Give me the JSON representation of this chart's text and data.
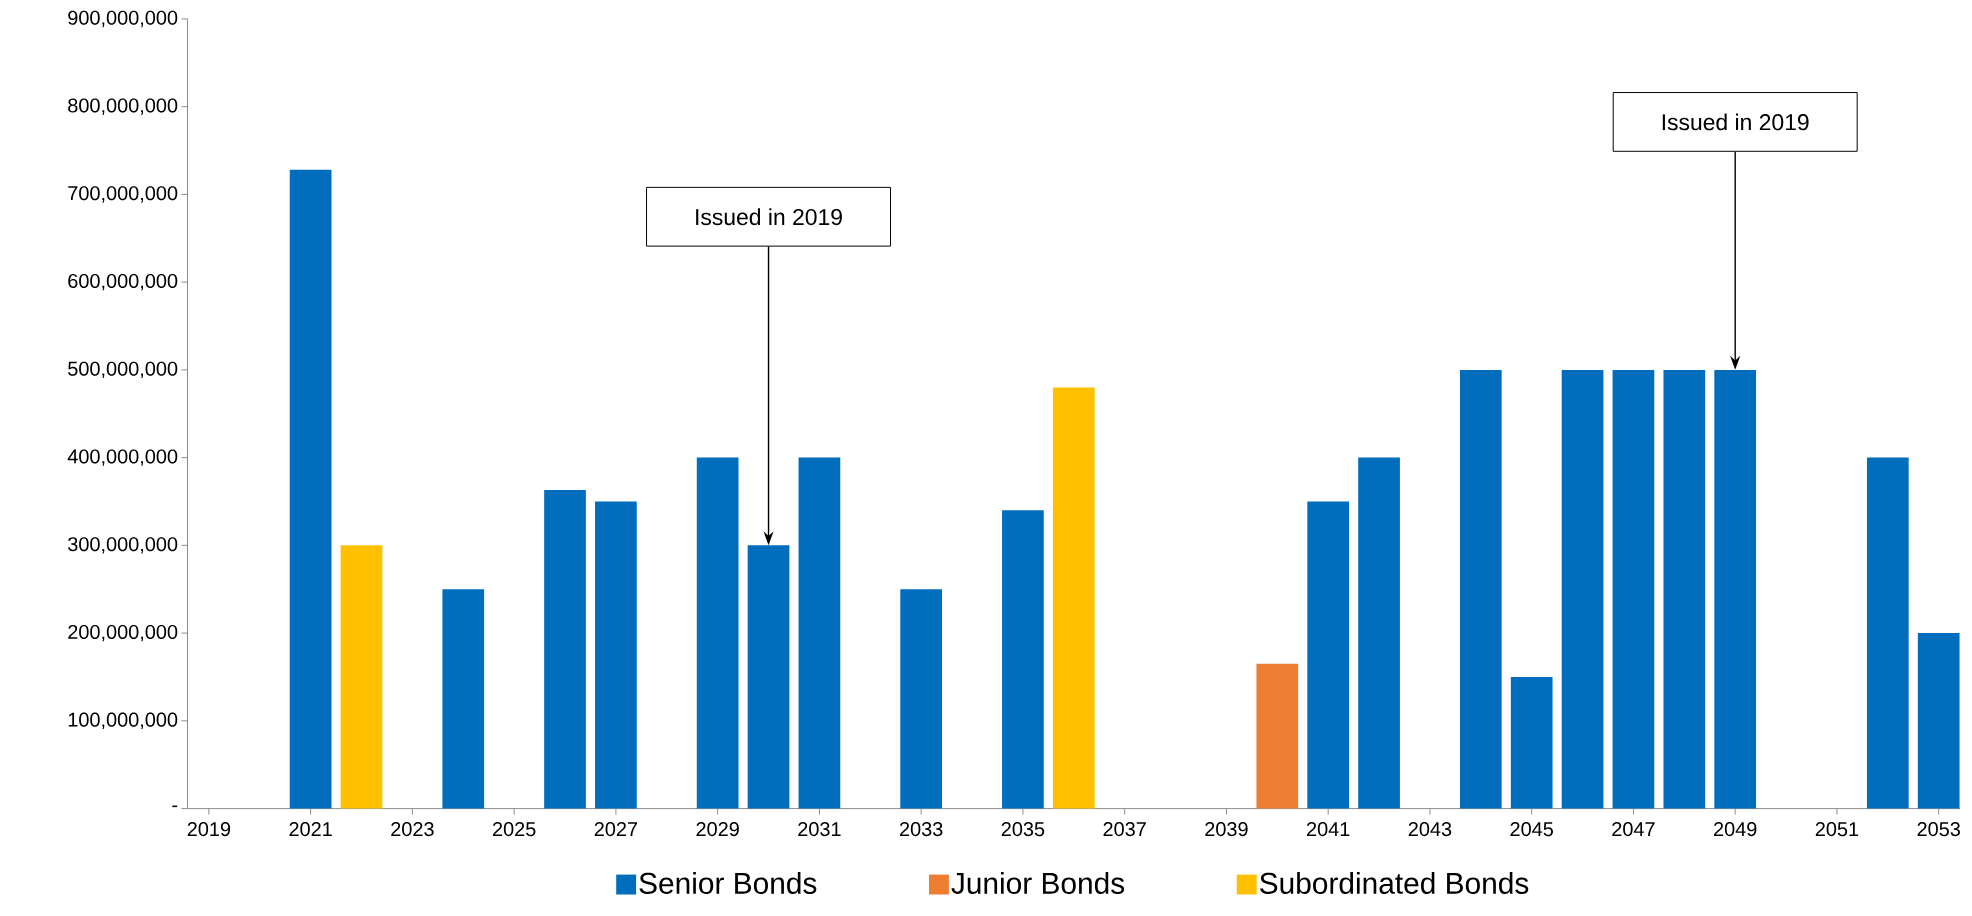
{
  "chart_data": {
    "type": "bar",
    "series": [
      {
        "name": "Senior Bonds",
        "color": "#006ebd",
        "x": [
          2021,
          2024,
          2026,
          2027,
          2029,
          2030,
          2031,
          2033,
          2035,
          2041,
          2042,
          2044,
          2045,
          2046,
          2047,
          2048,
          2049,
          2052,
          2053
        ],
        "values": [
          728000000,
          250000000,
          363000000,
          350000000,
          400000000,
          300000000,
          400000000,
          250000000,
          340000000,
          350000000,
          400000000,
          500000000,
          150000000,
          500000000,
          500000000,
          500000000,
          500000000,
          400000000,
          200000000
        ]
      },
      {
        "name": "Junior Bonds",
        "color": "#ed7d31",
        "x": [
          2040
        ],
        "values": [
          165000000
        ]
      },
      {
        "name": "Subordinated Bonds",
        "color": "#ffc000",
        "x": [
          2022,
          2036
        ],
        "values": [
          300000000,
          480000000
        ]
      }
    ],
    "xlim": [
      2018.58,
      2053.42
    ],
    "xticks": [
      2019,
      2021,
      2023,
      2025,
      2027,
      2029,
      2031,
      2033,
      2035,
      2037,
      2039,
      2041,
      2043,
      2045,
      2047,
      2049,
      2051,
      2053
    ],
    "ylim": [
      0,
      900000000
    ],
    "yticks": [
      {
        "value": 0,
        "label": "-"
      },
      {
        "value": 100000000,
        "label": "100,000,000"
      },
      {
        "value": 200000000,
        "label": "200,000,000"
      },
      {
        "value": 300000000,
        "label": "300,000,000"
      },
      {
        "value": 400000000,
        "label": "400,000,000"
      },
      {
        "value": 500000000,
        "label": "500,000,000"
      },
      {
        "value": 600000000,
        "label": "600,000,000"
      },
      {
        "value": 700000000,
        "label": "700,000,000"
      },
      {
        "value": 800000000,
        "label": "800,000,000"
      },
      {
        "value": 900000000,
        "label": "900,000,000"
      }
    ],
    "annotations": [
      {
        "text": "Issued in 2019",
        "x": 2030,
        "y": 300000000
      },
      {
        "text": "Issued in 2019",
        "x": 2049,
        "y": 500000000
      }
    ],
    "legend": "bottom"
  }
}
